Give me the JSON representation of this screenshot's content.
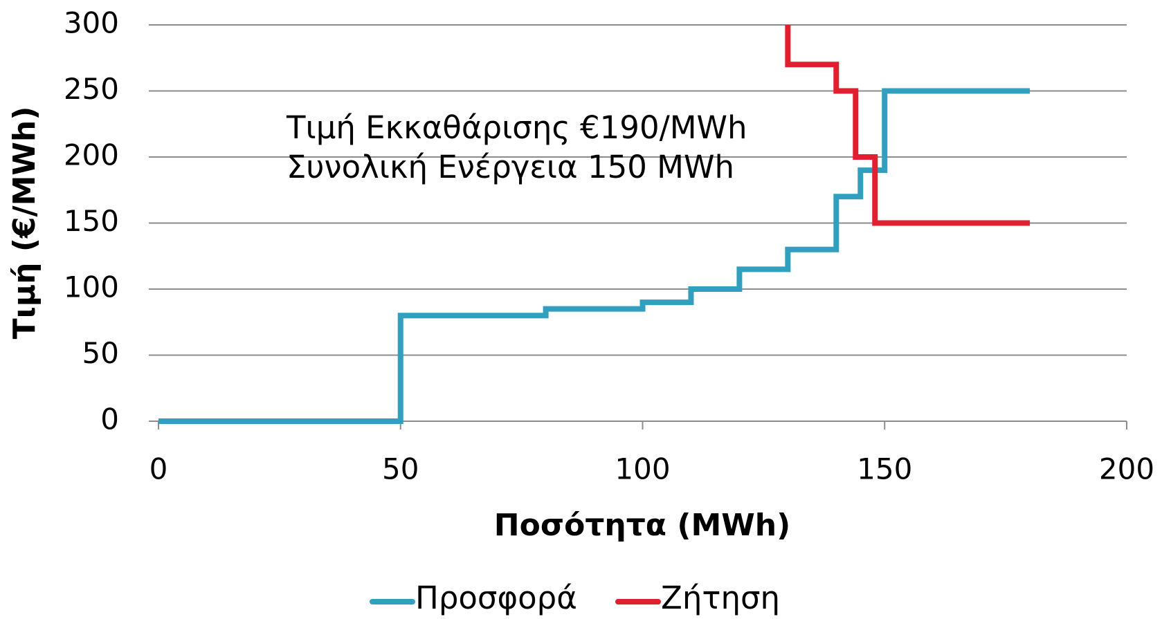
{
  "chart_data": {
    "type": "line",
    "step": true,
    "xlabel": "Ποσότητα (MWh)",
    "ylabel": "Τιμή (€/MWh)",
    "annotations": [
      "Τιμή Εκκαθάρισης €190/MWh",
      "Συνολική Ενέργεια 150 MWh"
    ],
    "xlim": [
      0,
      200
    ],
    "xticks": [
      0,
      50,
      100,
      150,
      200
    ],
    "ylim": [
      0,
      300
    ],
    "yticks": [
      0,
      50,
      100,
      150,
      200,
      250,
      300
    ],
    "grid": true,
    "legend": "bottom",
    "series": [
      {
        "name": "Προσφορά",
        "color": "#30a0be",
        "x": [
          0,
          50,
          50,
          80,
          80,
          100,
          100,
          110,
          110,
          120,
          120,
          130,
          130,
          140,
          140,
          145,
          145,
          150,
          150,
          180
        ],
        "values": [
          0,
          0,
          80,
          80,
          85,
          85,
          90,
          90,
          100,
          100,
          115,
          115,
          130,
          130,
          170,
          170,
          190,
          190,
          250,
          250
        ]
      },
      {
        "name": "Ζήτηση",
        "color": "#e0202e",
        "x": [
          130,
          130,
          140,
          140,
          144,
          144,
          148,
          148,
          180
        ],
        "values": [
          300,
          270,
          270,
          250,
          250,
          200,
          200,
          150,
          150
        ]
      }
    ]
  }
}
